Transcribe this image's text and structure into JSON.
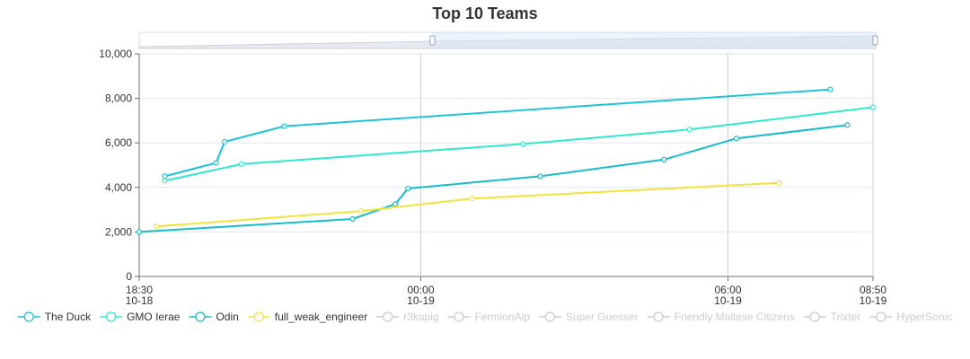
{
  "chart_data": {
    "type": "line",
    "title": "Top 10 Teams",
    "xlabel": "",
    "ylabel": "",
    "ylim": [
      0,
      10000
    ],
    "y_ticks": [
      "0",
      "2,000",
      "4,000",
      "6,000",
      "8,000",
      "10,000"
    ],
    "x_ticks": [
      {
        "time": "18:30",
        "date": "10-18"
      },
      {
        "time": "00:00",
        "date": "10-19"
      },
      {
        "time": "06:00",
        "date": "10-19"
      },
      {
        "time": "08:50",
        "date": "10-19"
      }
    ],
    "grid": true,
    "legend_position": "bottom",
    "datazoom_slider": true,
    "series": [
      {
        "name": "The Duck",
        "color": "#1fc3d6",
        "visible": true,
        "x": [
          "2021-10-18 19:00",
          "2021-10-18 20:00",
          "2021-10-18 20:10",
          "2021-10-18 21:20",
          "2021-10-19 08:00"
        ],
        "values": [
          4500,
          5100,
          6050,
          6750,
          8400
        ]
      },
      {
        "name": "GMO Ierae",
        "color": "#2ee8cf",
        "visible": true,
        "x": [
          "2021-10-18 19:00",
          "2021-10-18 20:30",
          "2021-10-19 02:00",
          "2021-10-19 05:15",
          "2021-10-19 08:50"
        ],
        "values": [
          4300,
          5050,
          5950,
          6600,
          7600
        ]
      },
      {
        "name": "Odin",
        "color": "#17bcc8",
        "visible": true,
        "x": [
          "2021-10-18 18:30",
          "2021-10-18 22:40",
          "2021-10-18 23:30",
          "2021-10-18 23:45",
          "2021-10-19 02:20",
          "2021-10-19 04:45",
          "2021-10-19 06:10",
          "2021-10-19 08:20"
        ],
        "values": [
          2000,
          2580,
          3250,
          3950,
          4500,
          5250,
          6200,
          6800
        ]
      },
      {
        "name": "full_weak_engineer",
        "color": "#f2e33a",
        "visible": true,
        "x": [
          "2021-10-18 18:50",
          "2021-10-18 22:50",
          "2021-10-19 01:00",
          "2021-10-19 07:00"
        ],
        "values": [
          2250,
          2930,
          3500,
          4200
        ]
      },
      {
        "name": "r3kapig",
        "color": "#cccccc",
        "visible": false,
        "x": [],
        "values": []
      },
      {
        "name": "FermionAlp",
        "color": "#cccccc",
        "visible": false,
        "x": [],
        "values": []
      },
      {
        "name": "Super Guesser",
        "color": "#cccccc",
        "visible": false,
        "x": [],
        "values": []
      },
      {
        "name": "Friendly Maltese Citizens",
        "color": "#cccccc",
        "visible": false,
        "x": [],
        "values": []
      },
      {
        "name": "Trixter",
        "color": "#cccccc",
        "visible": false,
        "x": [],
        "values": []
      },
      {
        "name": "HyperSonic",
        "color": "#cccccc",
        "visible": false,
        "x": [],
        "values": []
      }
    ]
  }
}
